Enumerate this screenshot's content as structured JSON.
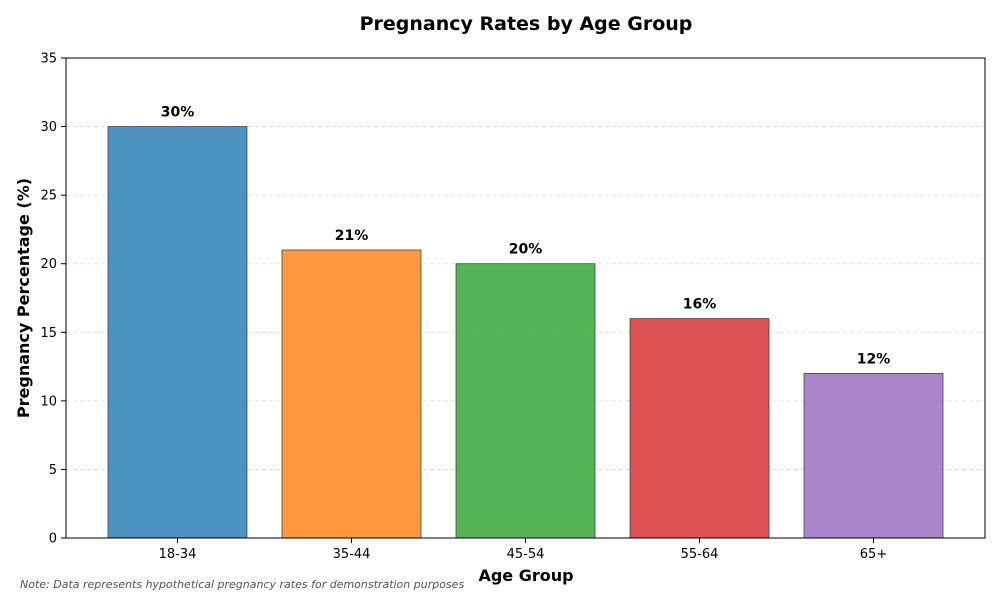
{
  "chart_data": {
    "type": "bar",
    "title": "Pregnancy Rates by Age Group",
    "xlabel": "Age Group",
    "ylabel": "Pregnancy Percentage (%)",
    "categories": [
      "18-34",
      "35-44",
      "45-54",
      "55-64",
      "65+"
    ],
    "values": [
      30,
      21,
      20,
      16,
      12
    ],
    "value_labels": [
      "30%",
      "21%",
      "20%",
      "16%",
      "12%"
    ],
    "colors": [
      "#1f77b4",
      "#ff7f0e",
      "#2ca02c",
      "#d62728",
      "#9467bd"
    ],
    "ylim": [
      0,
      35
    ],
    "yticks": [
      0,
      5,
      10,
      15,
      20,
      25,
      30,
      35
    ],
    "grid": "y-dashed",
    "legend": "none"
  },
  "footnote": "Note: Data represents hypothetical pregnancy rates for demonstration purposes"
}
